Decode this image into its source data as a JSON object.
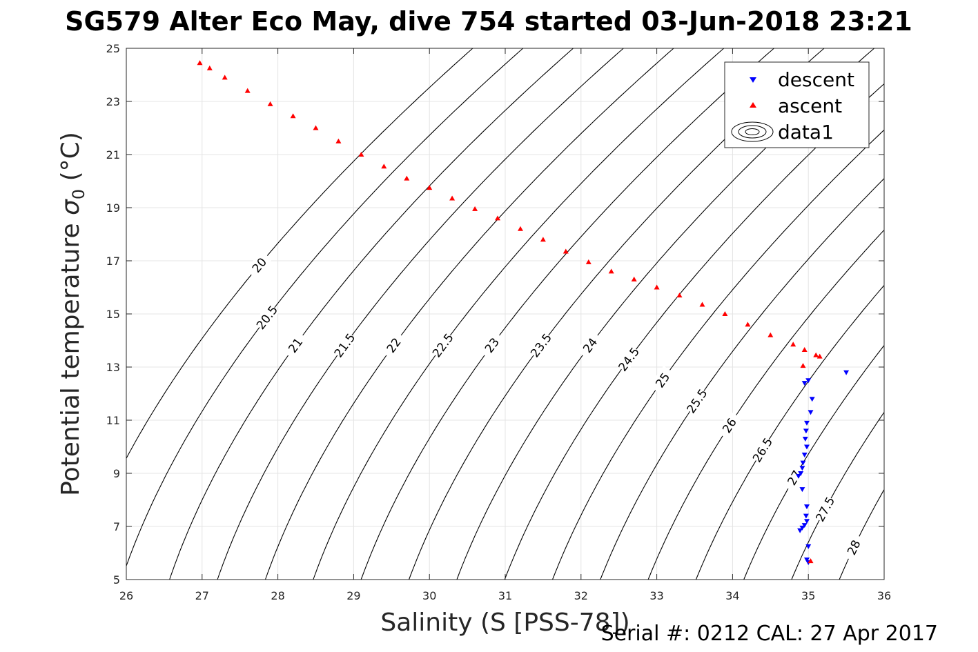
{
  "chart_data": {
    "type": "scatter",
    "title": "SG579 Alter Eco May, dive 754 started 03-Jun-2018 23:21",
    "xlabel": "Salinity (S [PSS-78])",
    "ylabel_main": "Potential temperature ",
    "ylabel_sigma": "σ",
    "ylabel_sub": "0",
    "ylabel_unit": " (°C)",
    "footer": "Serial #: 0212  CAL: 27 Apr 2017",
    "xlim": [
      26,
      36
    ],
    "ylim": [
      5,
      25
    ],
    "xticks": [
      26,
      27,
      28,
      29,
      30,
      31,
      32,
      33,
      34,
      35,
      36
    ],
    "yticks": [
      5,
      7,
      9,
      11,
      13,
      15,
      17,
      19,
      21,
      23,
      25
    ],
    "grid": true,
    "legend_position": "top-right",
    "contour_levels": [
      20,
      20.5,
      21,
      21.5,
      22,
      22.5,
      23,
      23.5,
      24,
      24.5,
      25,
      25.5,
      26,
      26.5,
      27,
      27.5,
      28
    ],
    "series": [
      {
        "name": "descent",
        "marker": "triangle-down",
        "color": "#0000ff",
        "points": [
          [
            35.5,
            12.8
          ],
          [
            34.95,
            12.4
          ],
          [
            35.0,
            12.5
          ],
          [
            35.05,
            11.8
          ],
          [
            35.03,
            11.3
          ],
          [
            34.98,
            10.9
          ],
          [
            34.97,
            10.6
          ],
          [
            34.96,
            10.3
          ],
          [
            34.98,
            10.0
          ],
          [
            34.95,
            9.7
          ],
          [
            34.93,
            9.4
          ],
          [
            34.92,
            9.2
          ],
          [
            34.9,
            9.0
          ],
          [
            34.87,
            8.9
          ],
          [
            34.92,
            8.4
          ],
          [
            34.98,
            7.75
          ],
          [
            34.97,
            7.4
          ],
          [
            34.98,
            7.2
          ],
          [
            34.95,
            7.05
          ],
          [
            34.92,
            6.95
          ],
          [
            34.89,
            6.85
          ],
          [
            35.0,
            6.25
          ],
          [
            34.98,
            5.75
          ],
          [
            35.0,
            5.65
          ]
        ]
      },
      {
        "name": "ascent",
        "marker": "triangle-up",
        "color": "#ff0000",
        "points": [
          [
            26.97,
            24.45
          ],
          [
            27.1,
            24.25
          ],
          [
            27.3,
            23.9
          ],
          [
            27.6,
            23.4
          ],
          [
            27.9,
            22.9
          ],
          [
            28.2,
            22.45
          ],
          [
            28.5,
            22.0
          ],
          [
            28.8,
            21.5
          ],
          [
            29.1,
            21.0
          ],
          [
            29.4,
            20.55
          ],
          [
            29.7,
            20.1
          ],
          [
            30.0,
            19.75
          ],
          [
            30.3,
            19.35
          ],
          [
            30.6,
            18.95
          ],
          [
            30.9,
            18.6
          ],
          [
            31.2,
            18.2
          ],
          [
            31.5,
            17.8
          ],
          [
            31.8,
            17.35
          ],
          [
            32.1,
            16.95
          ],
          [
            32.4,
            16.6
          ],
          [
            32.7,
            16.3
          ],
          [
            33.0,
            16.0
          ],
          [
            33.3,
            15.7
          ],
          [
            33.6,
            15.35
          ],
          [
            33.9,
            15.0
          ],
          [
            34.2,
            14.6
          ],
          [
            34.5,
            14.2
          ],
          [
            34.8,
            13.85
          ],
          [
            34.95,
            13.65
          ],
          [
            35.1,
            13.45
          ],
          [
            35.15,
            13.4
          ],
          [
            34.93,
            13.05
          ],
          [
            35.03,
            5.7
          ]
        ]
      },
      {
        "name": "data1",
        "marker": "contour"
      }
    ]
  }
}
